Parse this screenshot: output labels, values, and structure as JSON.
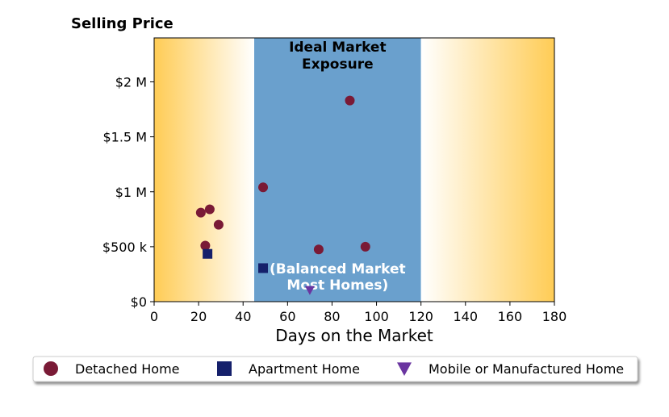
{
  "chart_data": {
    "type": "scatter",
    "title": "Selling Price",
    "xlabel": "Days on the Market",
    "ylabel": "",
    "xlim": [
      0,
      180
    ],
    "ylim": [
      0,
      2400000
    ],
    "xticks": [
      0,
      20,
      40,
      60,
      80,
      100,
      120,
      140,
      160,
      180
    ],
    "xtick_labels": [
      "0",
      "20",
      "40",
      "60",
      "80",
      "100",
      "120",
      "140",
      "160",
      "180"
    ],
    "yticks": [
      0,
      500000,
      1000000,
      1500000,
      2000000
    ],
    "ytick_labels": [
      "$0",
      "$500 k",
      "$1 M",
      "$1.5 M",
      "$2 M"
    ],
    "grid": false,
    "legend_position": "bottom",
    "background": {
      "outer_color": "#ffcc55",
      "inner_color": "#ffffff",
      "ideal_band": {
        "x_range": [
          45,
          120
        ],
        "color": "#6aa0cd",
        "label_top": [
          "Ideal Market",
          "Exposure"
        ],
        "label_bottom": [
          "(Balanced Market",
          "Most Homes)"
        ],
        "label_top_color": "#000000",
        "label_bottom_color": "#ffffff"
      }
    },
    "series": [
      {
        "name": "Detached Home",
        "marker": "circle",
        "color": "#7a1a36",
        "points": [
          {
            "x": 21,
            "y": 810000
          },
          {
            "x": 25,
            "y": 840000
          },
          {
            "x": 29,
            "y": 700000
          },
          {
            "x": 23,
            "y": 510000
          },
          {
            "x": 49,
            "y": 1040000
          },
          {
            "x": 74,
            "y": 475000
          },
          {
            "x": 88,
            "y": 1830000
          },
          {
            "x": 95,
            "y": 500000
          }
        ]
      },
      {
        "name": "Apartment Home",
        "marker": "square",
        "color": "#15206b",
        "points": [
          {
            "x": 24,
            "y": 435000
          },
          {
            "x": 49,
            "y": 305000
          }
        ]
      },
      {
        "name": "Mobile or Manufactured Home",
        "marker": "triangle-down",
        "color": "#6a35a0",
        "points": [
          {
            "x": 70,
            "y": 105000
          }
        ]
      }
    ]
  }
}
